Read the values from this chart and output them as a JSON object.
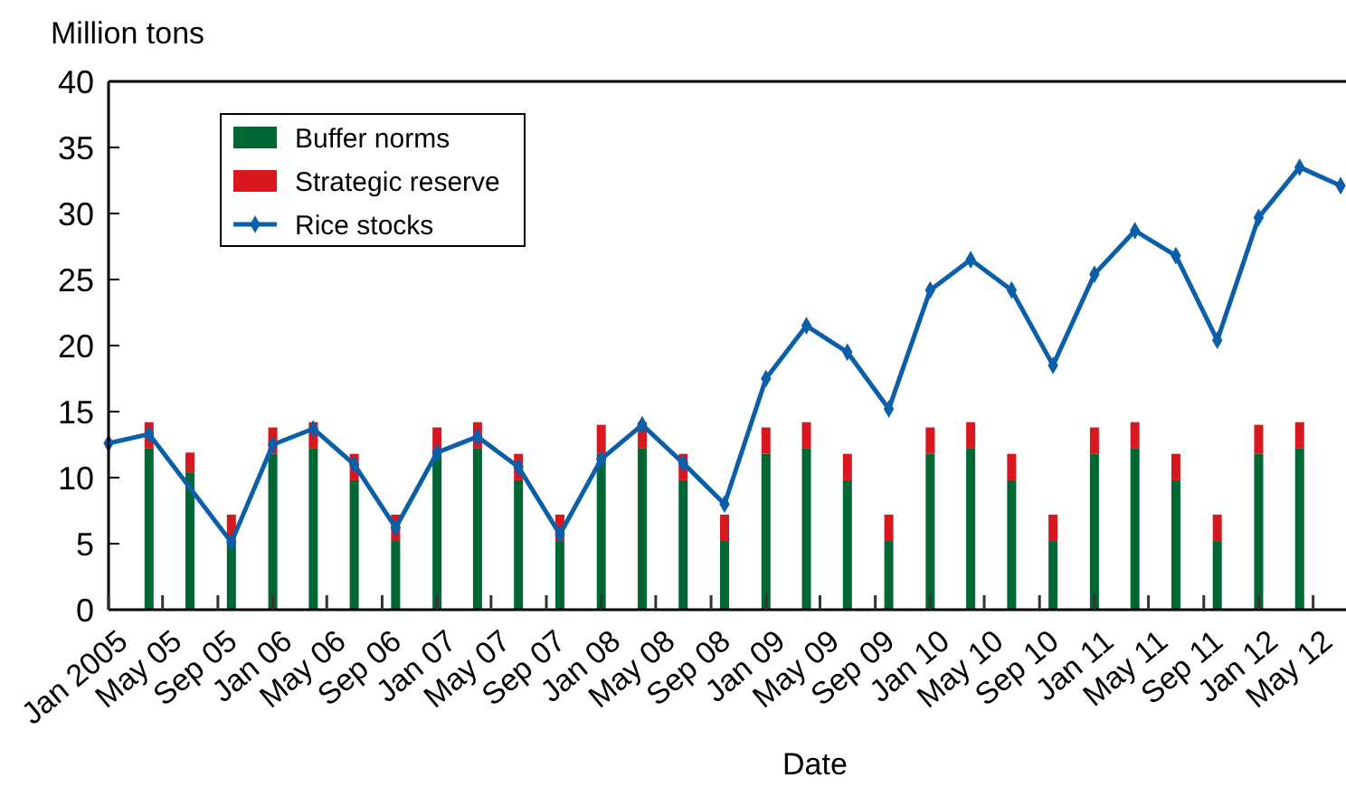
{
  "chart_data": {
    "type": "bar",
    "stacked": true,
    "xlabel": "Date",
    "ylabel": "Million tons",
    "legend": "top left",
    "grid": false,
    "marker": "diamond",
    "xlim": [
      "2005-01",
      "2012-07"
    ],
    "xticks": [
      {
        "value": "2005-01",
        "label": "Jan 2005"
      },
      {
        "value": "2005-05",
        "label": "May 05"
      },
      {
        "value": "2005-09",
        "label": "Sep 05"
      },
      {
        "value": "2006-01",
        "label": "Jan 06"
      },
      {
        "value": "2006-05",
        "label": "May 06"
      },
      {
        "value": "2006-09",
        "label": "Sep 06"
      },
      {
        "value": "2007-01",
        "label": "Jan 07"
      },
      {
        "value": "2007-05",
        "label": "May 07"
      },
      {
        "value": "2007-09",
        "label": "Sep 07"
      },
      {
        "value": "2008-01",
        "label": "Jan 08"
      },
      {
        "value": "2008-05",
        "label": "May 08"
      },
      {
        "value": "2008-09",
        "label": "Sep 08"
      },
      {
        "value": "2009-01",
        "label": "Jan 09"
      },
      {
        "value": "2009-05",
        "label": "May 09"
      },
      {
        "value": "2009-09",
        "label": "Sep 09"
      },
      {
        "value": "2010-01",
        "label": "Jan 10"
      },
      {
        "value": "2010-05",
        "label": "May 10"
      },
      {
        "value": "2010-09",
        "label": "Sep 10"
      },
      {
        "value": "2011-01",
        "label": "Jan 11"
      },
      {
        "value": "2011-05",
        "label": "May 11"
      },
      {
        "value": "2011-09",
        "label": "Sep 11"
      },
      {
        "value": "2012-01",
        "label": "Jan 12"
      },
      {
        "value": "2012-05",
        "label": "May 12"
      }
    ],
    "ylim": [
      0,
      40
    ],
    "yticks": [
      0,
      5,
      10,
      15,
      20,
      25,
      30,
      35,
      40
    ],
    "series": [
      {
        "name": "Buffer norms",
        "color": "#006633",
        "x": [
          "2005-04",
          "2005-07",
          "2005-10",
          "2006-01",
          "2006-04",
          "2006-07",
          "2006-10",
          "2007-01",
          "2007-04",
          "2007-07",
          "2007-10",
          "2008-01",
          "2008-04",
          "2008-07",
          "2008-10",
          "2009-01",
          "2009-04",
          "2009-07",
          "2009-10",
          "2010-01",
          "2010-04",
          "2010-07",
          "2010-10",
          "2011-01",
          "2011-04",
          "2011-07",
          "2011-10",
          "2012-01",
          "2012-04"
        ],
        "values": [
          12.2,
          10.4,
          5.2,
          11.8,
          12.2,
          9.8,
          5.2,
          11.8,
          12.2,
          9.8,
          5.2,
          11.8,
          12.2,
          9.8,
          5.2,
          11.8,
          12.2,
          9.8,
          5.2,
          11.8,
          12.2,
          9.8,
          5.2,
          11.8,
          12.2,
          9.8,
          5.2,
          11.8,
          12.2
        ]
      },
      {
        "name": "Strategic reserve",
        "color": "#d7191f",
        "x": [
          "2005-04",
          "2005-07",
          "2005-10",
          "2006-01",
          "2006-04",
          "2006-07",
          "2006-10",
          "2007-01",
          "2007-04",
          "2007-07",
          "2007-10",
          "2008-01",
          "2008-04",
          "2008-07",
          "2008-10",
          "2009-01",
          "2009-04",
          "2009-07",
          "2009-10",
          "2010-01",
          "2010-04",
          "2010-07",
          "2010-10",
          "2011-01",
          "2011-04",
          "2011-07",
          "2011-10",
          "2012-01",
          "2012-04"
        ],
        "values": [
          2.0,
          1.5,
          2.0,
          2.0,
          2.0,
          2.0,
          2.0,
          2.0,
          2.0,
          2.0,
          2.0,
          2.2,
          2.0,
          2.0,
          2.0,
          2.0,
          2.0,
          2.0,
          2.0,
          2.0,
          2.0,
          2.0,
          2.0,
          2.0,
          2.0,
          2.0,
          2.0,
          2.2,
          2.0
        ]
      },
      {
        "name": "Rice stocks",
        "type": "line",
        "color": "#0a5fa8",
        "x": [
          "2005-01",
          "2005-04",
          "2005-10",
          "2006-01",
          "2006-04",
          "2006-07",
          "2006-10",
          "2007-01",
          "2007-04",
          "2007-07",
          "2007-10",
          "2008-01",
          "2008-04",
          "2008-07",
          "2008-10",
          "2009-01",
          "2009-04",
          "2009-07",
          "2009-10",
          "2010-01",
          "2010-04",
          "2010-07",
          "2010-10",
          "2011-01",
          "2011-04",
          "2011-07",
          "2011-10",
          "2012-01",
          "2012-04",
          "2012-07"
        ],
        "values": [
          12.6,
          13.3,
          5.1,
          12.5,
          13.7,
          11.0,
          6.2,
          11.9,
          13.1,
          10.8,
          5.7,
          11.4,
          14.0,
          11.1,
          8.0,
          17.5,
          21.5,
          19.5,
          15.2,
          24.2,
          26.5,
          24.2,
          18.5,
          25.4,
          28.7,
          26.8,
          20.4,
          29.7,
          33.5,
          32.1
        ]
      }
    ]
  }
}
